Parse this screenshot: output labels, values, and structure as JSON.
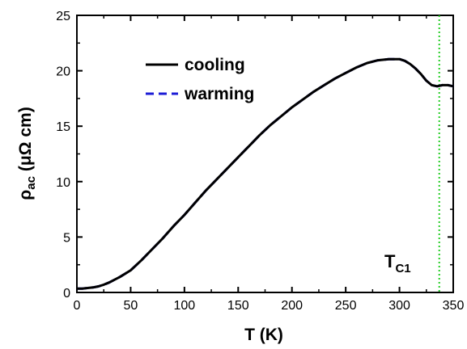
{
  "chart_data": {
    "type": "line",
    "xlabel": "T (K)",
    "ylabel_main": "ρ",
    "ylabel_sub": "ac",
    "ylabel_unit": " (μΩ cm)",
    "xlim": [
      0,
      350
    ],
    "ylim": [
      0,
      25
    ],
    "xticks": [
      0,
      50,
      100,
      150,
      200,
      250,
      300,
      350
    ],
    "yticks": [
      0,
      5,
      10,
      15,
      20,
      25
    ],
    "grid": false,
    "legend_position": "upper-left",
    "series": [
      {
        "name": "cooling",
        "color": "#000000",
        "style": "solid",
        "x": [
          0,
          5,
          10,
          15,
          20,
          25,
          30,
          40,
          50,
          60,
          70,
          80,
          90,
          100,
          110,
          120,
          130,
          140,
          150,
          160,
          170,
          180,
          190,
          200,
          210,
          220,
          230,
          240,
          250,
          260,
          270,
          280,
          290,
          300,
          305,
          310,
          315,
          320,
          325,
          330,
          335,
          340,
          345,
          350
        ],
        "y": [
          0.35,
          0.35,
          0.4,
          0.45,
          0.55,
          0.7,
          0.9,
          1.4,
          2.0,
          2.9,
          3.9,
          4.9,
          6.0,
          7.0,
          8.1,
          9.2,
          10.2,
          11.2,
          12.2,
          13.2,
          14.2,
          15.1,
          15.9,
          16.7,
          17.4,
          18.1,
          18.7,
          19.3,
          19.8,
          20.3,
          20.7,
          20.95,
          21.05,
          21.05,
          20.9,
          20.6,
          20.2,
          19.7,
          19.1,
          18.7,
          18.6,
          18.7,
          18.7,
          18.6
        ]
      },
      {
        "name": "warming",
        "color": "#1c1cd6",
        "style": "dashed",
        "x": [
          0,
          5,
          10,
          15,
          20,
          25,
          30,
          40,
          50,
          60,
          70,
          80,
          90,
          100,
          110,
          120,
          130,
          140,
          150,
          160,
          170,
          180,
          190,
          200,
          210,
          220,
          230,
          240,
          250,
          260,
          270,
          280,
          290,
          300,
          305,
          310,
          315,
          320,
          325,
          330,
          335,
          340,
          345,
          350
        ],
        "y": [
          0.35,
          0.35,
          0.4,
          0.45,
          0.55,
          0.7,
          0.9,
          1.4,
          2.0,
          2.9,
          3.9,
          4.9,
          6.0,
          7.0,
          8.1,
          9.2,
          10.2,
          11.2,
          12.2,
          13.2,
          14.2,
          15.1,
          15.9,
          16.7,
          17.4,
          18.1,
          18.7,
          19.3,
          19.8,
          20.3,
          20.7,
          20.95,
          21.05,
          21.05,
          20.9,
          20.6,
          20.2,
          19.7,
          19.1,
          18.7,
          18.6,
          18.7,
          18.7,
          18.6
        ]
      }
    ],
    "vline": {
      "x": 337,
      "color": "#22cc22",
      "style": "dotted"
    },
    "annotation": {
      "main": "T",
      "sub": "C1"
    }
  }
}
